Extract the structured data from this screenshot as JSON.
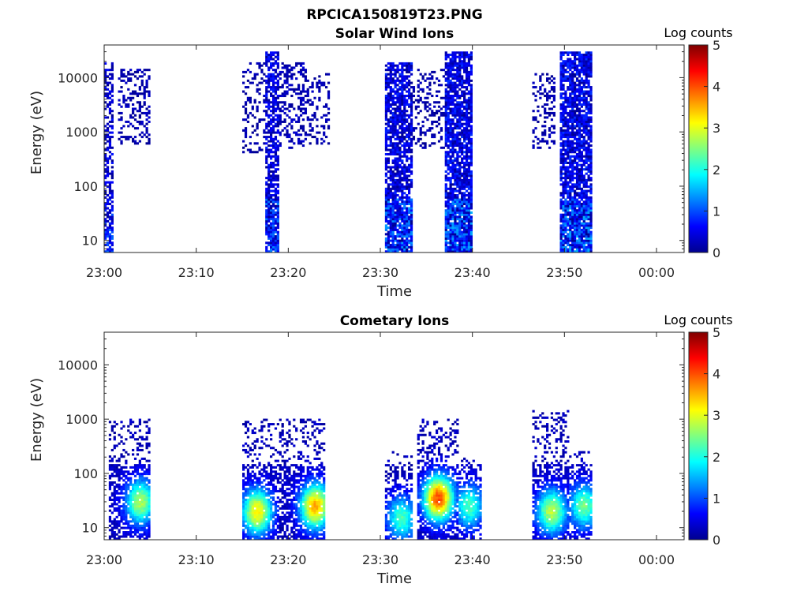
{
  "figure": {
    "title": "RPCICA150819T23.PNG"
  },
  "colormap": [
    "#00008f",
    "#0000ff",
    "#0080ff",
    "#00ffff",
    "#80ff80",
    "#ffff00",
    "#ff8000",
    "#ff0000",
    "#800000"
  ],
  "chart_data": [
    {
      "type": "heatmap",
      "title": "Solar Wind Ions",
      "xlabel": "Time",
      "ylabel": "Energy (eV)",
      "y_scale": "log",
      "xlim": [
        "23:00",
        "00:03"
      ],
      "ylim": [
        6,
        40000
      ],
      "x_ticks": [
        "23:00",
        "23:10",
        "23:20",
        "23:30",
        "23:40",
        "23:50",
        "00:00"
      ],
      "y_ticks": [
        {
          "value": 10,
          "label": "10"
        },
        {
          "value": 100,
          "label": "100"
        },
        {
          "value": 1000,
          "label": "1000"
        },
        {
          "value": 10000,
          "label": "10000"
        }
      ],
      "colorbar": {
        "label": "Log counts",
        "range": [
          0,
          5
        ],
        "ticks": [
          "0",
          "1",
          "2",
          "3",
          "4",
          "5"
        ]
      },
      "bursts": [
        {
          "t_start": 0.0,
          "t_end": 1.0,
          "e_min": 6,
          "e_max": 20000,
          "density": 0.6,
          "max_log_counts": 1.2
        },
        {
          "t_start": 1.5,
          "t_end": 5.0,
          "e_min": 600,
          "e_max": 15000,
          "density": 0.35,
          "max_log_counts": 0.6
        },
        {
          "t_start": 15.0,
          "t_end": 17.5,
          "e_min": 400,
          "e_max": 20000,
          "density": 0.25,
          "max_log_counts": 0.5
        },
        {
          "t_start": 17.5,
          "t_end": 19.0,
          "e_min": 6,
          "e_max": 30000,
          "density": 0.7,
          "max_log_counts": 1.3
        },
        {
          "t_start": 19.0,
          "t_end": 22.0,
          "e_min": 500,
          "e_max": 20000,
          "density": 0.4,
          "max_log_counts": 0.7
        },
        {
          "t_start": 22.0,
          "t_end": 24.5,
          "e_min": 600,
          "e_max": 12000,
          "density": 0.25,
          "max_log_counts": 0.5
        },
        {
          "t_start": 30.5,
          "t_end": 33.5,
          "e_min": 6,
          "e_max": 20000,
          "density": 0.75,
          "max_log_counts": 1.4
        },
        {
          "t_start": 33.5,
          "t_end": 37.0,
          "e_min": 500,
          "e_max": 15000,
          "density": 0.25,
          "max_log_counts": 0.5
        },
        {
          "t_start": 37.0,
          "t_end": 40.0,
          "e_min": 6,
          "e_max": 30000,
          "density": 0.8,
          "max_log_counts": 1.5
        },
        {
          "t_start": 46.5,
          "t_end": 49.0,
          "e_min": 500,
          "e_max": 12000,
          "density": 0.3,
          "max_log_counts": 0.5
        },
        {
          "t_start": 49.5,
          "t_end": 53.0,
          "e_min": 6,
          "e_max": 30000,
          "density": 0.8,
          "max_log_counts": 1.5
        }
      ]
    },
    {
      "type": "heatmap",
      "title": "Cometary Ions",
      "xlabel": "Time",
      "ylabel": "Energy (eV)",
      "y_scale": "log",
      "xlim": [
        "23:00",
        "00:03"
      ],
      "ylim": [
        6,
        40000
      ],
      "x_ticks": [
        "23:00",
        "23:10",
        "23:20",
        "23:30",
        "23:40",
        "23:50",
        "00:00"
      ],
      "y_ticks": [
        {
          "value": 10,
          "label": "10"
        },
        {
          "value": 100,
          "label": "100"
        },
        {
          "value": 1000,
          "label": "1000"
        },
        {
          "value": 10000,
          "label": "10000"
        }
      ],
      "colorbar": {
        "label": "Log counts",
        "range": [
          0,
          5
        ],
        "ticks": [
          "0",
          "1",
          "2",
          "3",
          "4",
          "5"
        ]
      },
      "bursts": [
        {
          "t_start": 0.5,
          "t_end": 5.0,
          "e_min": 6,
          "e_max": 1000,
          "density": 0.45,
          "peak_t": 3.8,
          "peak_e": 30,
          "peak_log_counts": 2.5
        },
        {
          "t_start": 15.0,
          "t_end": 19.0,
          "e_min": 6,
          "e_max": 1000,
          "density": 0.45,
          "peak_t": 16.5,
          "peak_e": 20,
          "peak_log_counts": 3.0
        },
        {
          "t_start": 19.0,
          "t_end": 24.0,
          "e_min": 6,
          "e_max": 1000,
          "density": 0.5,
          "peak_t": 22.8,
          "peak_e": 25,
          "peak_log_counts": 3.3
        },
        {
          "t_start": 30.5,
          "t_end": 33.5,
          "e_min": 6,
          "e_max": 250,
          "density": 0.35,
          "peak_t": 32.2,
          "peak_e": 15,
          "peak_log_counts": 2.0
        },
        {
          "t_start": 34.0,
          "t_end": 38.5,
          "e_min": 6,
          "e_max": 1000,
          "density": 0.5,
          "peak_t": 36.2,
          "peak_e": 35,
          "peak_log_counts": 3.8
        },
        {
          "t_start": 38.5,
          "t_end": 41.0,
          "e_min": 6,
          "e_max": 200,
          "density": 0.35,
          "peak_t": 39.5,
          "peak_e": 25,
          "peak_log_counts": 2.0
        },
        {
          "t_start": 46.5,
          "t_end": 50.5,
          "e_min": 6,
          "e_max": 1500,
          "density": 0.5,
          "peak_t": 48.5,
          "peak_e": 20,
          "peak_log_counts": 2.6
        },
        {
          "t_start": 50.5,
          "t_end": 53.0,
          "e_min": 6,
          "e_max": 250,
          "density": 0.45,
          "peak_t": 52.0,
          "peak_e": 25,
          "peak_log_counts": 2.2
        }
      ]
    }
  ]
}
